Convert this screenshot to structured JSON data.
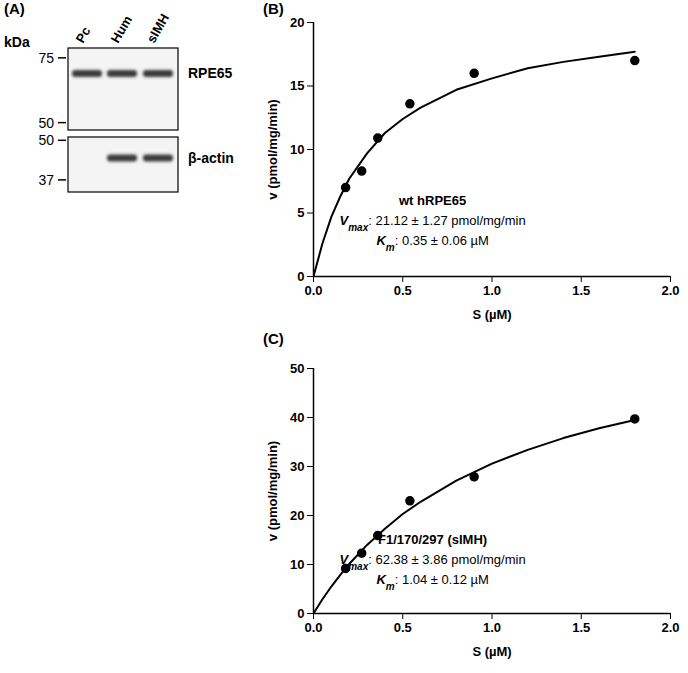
{
  "panel_a": {
    "title": "(A)",
    "unit_label": "kDa",
    "lanes": [
      "Pc",
      "Hum",
      "sIMH"
    ],
    "blots": [
      {
        "name": "RPE65",
        "markers": [
          75,
          50
        ],
        "bands": [
          true,
          true,
          true
        ]
      },
      {
        "name": "β-actin",
        "markers": [
          50,
          37
        ],
        "bands": [
          false,
          true,
          true
        ]
      }
    ]
  },
  "chart_data": [
    {
      "title": "(B)",
      "type": "scatter",
      "color": "#000000",
      "marker": "circle",
      "x_label": "S (µM)",
      "y_label": "v (pmol/mg/min)",
      "x": [
        0.18,
        0.27,
        0.36,
        0.54,
        0.9,
        1.8
      ],
      "values": [
        7.0,
        8.3,
        10.9,
        13.6,
        16.0,
        17.0
      ],
      "fit": {
        "line_style": "solid",
        "x": [
          0,
          0.05,
          0.1,
          0.15,
          0.2,
          0.3,
          0.4,
          0.5,
          0.6,
          0.8,
          1.0,
          1.2,
          1.4,
          1.6,
          1.8
        ],
        "values": [
          0,
          2.6,
          4.7,
          6.3,
          7.7,
          9.7,
          11.3,
          12.4,
          13.3,
          14.7,
          15.6,
          16.4,
          16.9,
          17.3,
          17.7
        ]
      },
      "annotation": [
        [
          {
            "text": "wt hRPE65",
            "style": "bold"
          }
        ],
        [
          {
            "text": "V",
            "style": "bold-italic"
          },
          {
            "text": "max",
            "style": "bold-italic-sub"
          },
          {
            "text": ": 21.12 ± 1.27 pmol/mg/min",
            "style": "normal"
          }
        ],
        [
          {
            "text": "K",
            "style": "bold-italic"
          },
          {
            "text": "m",
            "style": "bold-italic-sub"
          },
          {
            "text": ": 0.35 ± 0.06 µM",
            "style": "normal"
          }
        ]
      ],
      "xlim": [
        0,
        2
      ],
      "ylim": [
        0,
        20
      ],
      "xticks": [
        {
          "value": 0,
          "label": "0.0"
        },
        {
          "value": 0.5,
          "label": "0.5"
        },
        {
          "value": 1,
          "label": "1.0"
        },
        {
          "value": 1.5,
          "label": "1.5"
        },
        {
          "value": 2,
          "label": "2.0"
        }
      ],
      "yticks": [
        0,
        5,
        10,
        15,
        20
      ],
      "grid": false
    },
    {
      "title": "(C)",
      "type": "scatter",
      "color": "#000000",
      "marker": "circle",
      "x_label": "S (µM)",
      "y_label": "v (pmol/mg/min)",
      "x": [
        0.18,
        0.27,
        0.36,
        0.54,
        0.9,
        1.8
      ],
      "values": [
        9.2,
        12.3,
        15.9,
        23.0,
        27.9,
        39.7
      ],
      "fit": {
        "line_style": "solid",
        "x": [
          0,
          0.05,
          0.1,
          0.15,
          0.2,
          0.3,
          0.4,
          0.5,
          0.6,
          0.8,
          1.0,
          1.2,
          1.4,
          1.6,
          1.8
        ],
        "values": [
          0,
          2.9,
          5.5,
          7.9,
          10.1,
          14.0,
          17.3,
          20.3,
          22.8,
          27.1,
          30.6,
          33.4,
          35.8,
          37.8,
          39.5
        ]
      },
      "annotation": [
        [
          {
            "text": "F1/170/297 (sIMH)",
            "style": "bold"
          }
        ],
        [
          {
            "text": "V",
            "style": "bold-italic"
          },
          {
            "text": "max",
            "style": "bold-italic-sub"
          },
          {
            "text": ": 62.38 ± 3.86 pmol/mg/min",
            "style": "normal"
          }
        ],
        [
          {
            "text": "K",
            "style": "bold-italic"
          },
          {
            "text": "m",
            "style": "bold-italic-sub"
          },
          {
            "text": ": 1.04 ± 0.12 µM",
            "style": "normal"
          }
        ]
      ],
      "xlim": [
        0,
        2
      ],
      "ylim": [
        0,
        50
      ],
      "xticks": [
        {
          "value": 0,
          "label": "0.0"
        },
        {
          "value": 0.5,
          "label": "0.5"
        },
        {
          "value": 1,
          "label": "1.0"
        },
        {
          "value": 1.5,
          "label": "1.5"
        },
        {
          "value": 2,
          "label": "2.0"
        }
      ],
      "yticks": [
        0,
        10,
        20,
        30,
        40,
        50
      ],
      "grid": false
    }
  ]
}
